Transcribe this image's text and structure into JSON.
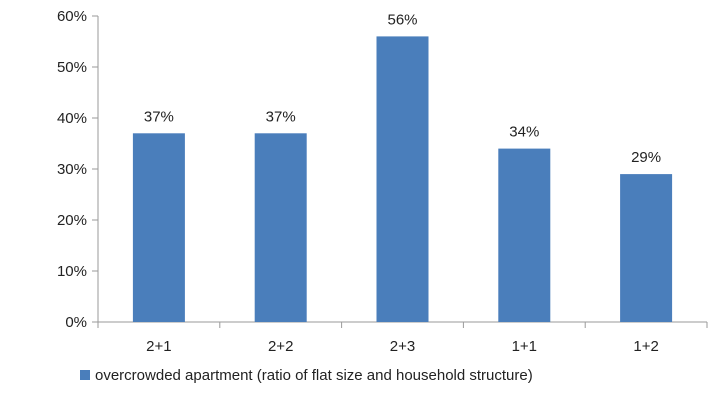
{
  "chart_data": {
    "type": "bar",
    "categories": [
      "2+1",
      "2+2",
      "2+3",
      "1+1",
      "1+2"
    ],
    "series": [
      {
        "name": "overcrowded apartment (ratio of flat size and household structure)",
        "values": [
          0.37,
          0.37,
          0.56,
          0.34,
          0.29
        ],
        "value_labels": [
          "37%",
          "37%",
          "56%",
          "34%",
          "29%"
        ],
        "color": "#4a7ebb"
      }
    ],
    "ylim": [
      0,
      0.6
    ],
    "yticks": [
      {
        "value": 0.0,
        "label": "0%"
      },
      {
        "value": 0.1,
        "label": "10%"
      },
      {
        "value": 0.2,
        "label": "20%"
      },
      {
        "value": 0.3,
        "label": "30%"
      },
      {
        "value": 0.4,
        "label": "40%"
      },
      {
        "value": 0.5,
        "label": "50%"
      },
      {
        "value": 0.6,
        "label": "60%"
      }
    ],
    "grid": false,
    "legend": "bottom",
    "axis_color": "#9a9a9a",
    "title": "",
    "xlabel": "",
    "ylabel": ""
  }
}
